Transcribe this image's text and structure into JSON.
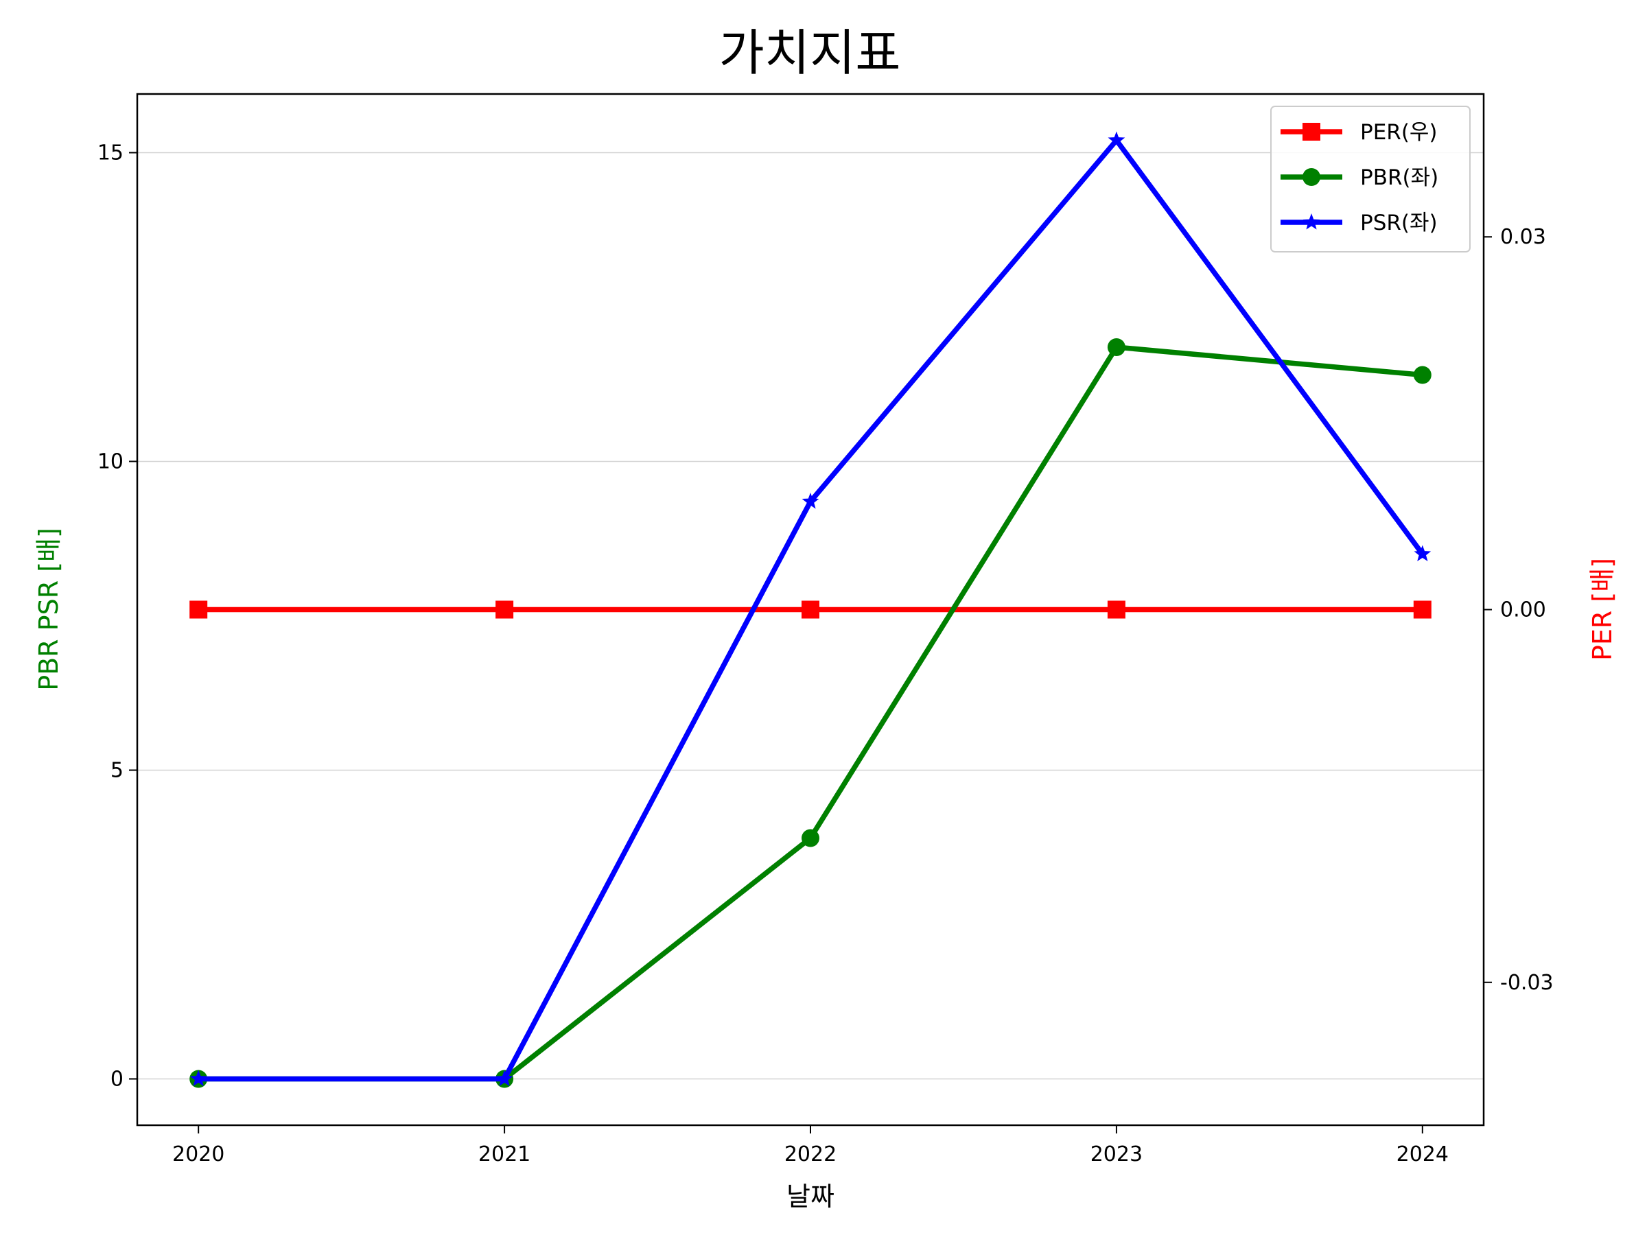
{
  "chart_data": {
    "type": "line",
    "title": "가치지표",
    "xlabel": "날짜",
    "ylabel_left": "PBR PSR [배]",
    "ylabel_right": "PER [배]",
    "x": [
      "2020",
      "2021",
      "2022",
      "2023",
      "2024"
    ],
    "xlim": [
      2019.8,
      2024.2
    ],
    "ylim_left": [
      -0.75,
      15.95
    ],
    "ylim_right": [
      -0.0415,
      0.0415
    ],
    "yticks_left": [
      "0",
      "5",
      "10",
      "15"
    ],
    "yticks_right": [
      "-0.03",
      "0.00",
      "0.03"
    ],
    "grid": "horizontal",
    "legend_position": "top-right",
    "series": [
      {
        "name": "PER(우)",
        "axis": "right",
        "marker": "square",
        "color": "#ff0000",
        "values": [
          0,
          0,
          0,
          0,
          0
        ]
      },
      {
        "name": "PBR(좌)",
        "axis": "left",
        "marker": "circle",
        "color": "#008000",
        "values": [
          0,
          0,
          3.9,
          11.85,
          11.4
        ]
      },
      {
        "name": "PSR(좌)",
        "axis": "left",
        "marker": "star",
        "color": "#0000ff",
        "values": [
          0,
          0,
          9.35,
          15.2,
          8.5
        ]
      }
    ]
  }
}
